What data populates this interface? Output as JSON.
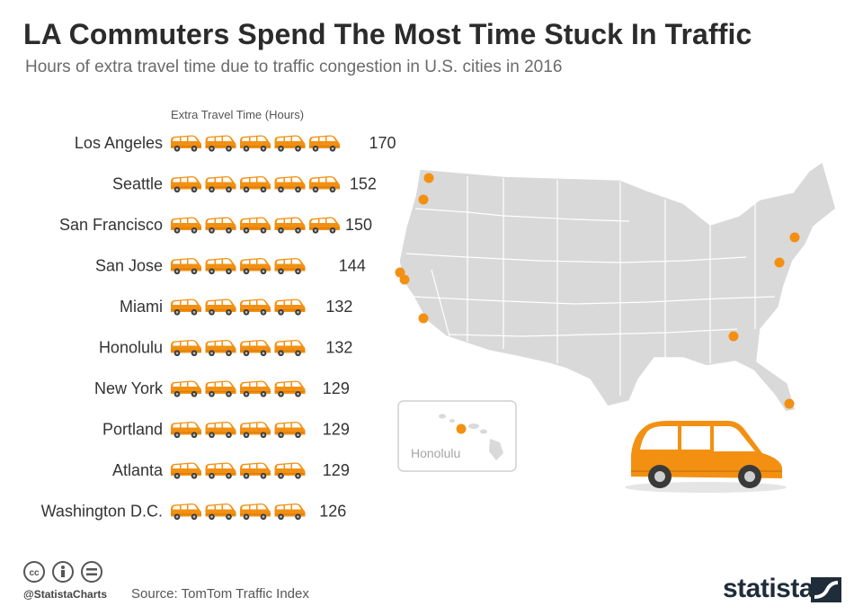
{
  "header": {
    "title": "LA Commuters Spend The Most Time Stuck In Traffic",
    "subtitle": "Hours of extra travel time due to traffic congestion in U.S. cities in 2016"
  },
  "colors": {
    "accent": "#f39012",
    "map_fill": "#d9d9d9",
    "map_stroke": "#ffffff",
    "text": "#333333"
  },
  "chart_data": {
    "type": "bar",
    "title": "LA Commuters Spend The Most Time Stuck In Traffic",
    "subtitle": "Hours of extra travel time due to traffic congestion in U.S. cities in 2016",
    "xlabel": "Extra Travel Time (Hours)",
    "ylabel": "",
    "unit_per_icon": 30,
    "categories": [
      "Los Angeles",
      "Seattle",
      "San Francisco",
      "San Jose",
      "Miami",
      "Honolulu",
      "New York",
      "Portland",
      "Atlanta",
      "Washington D.C."
    ],
    "values": [
      170,
      152,
      150,
      144,
      132,
      132,
      129,
      129,
      129,
      126
    ],
    "xlim": [
      0,
      180
    ]
  },
  "map": {
    "inset_label": "Honolulu",
    "city_markers": [
      "Seattle",
      "Portland",
      "San Francisco",
      "San Jose",
      "Los Angeles",
      "New York",
      "Washington D.C.",
      "Atlanta",
      "Miami",
      "Honolulu"
    ]
  },
  "footer": {
    "handle": "@StatistaCharts",
    "source": "Source: TomTom Traffic Index",
    "brand": "statista"
  }
}
